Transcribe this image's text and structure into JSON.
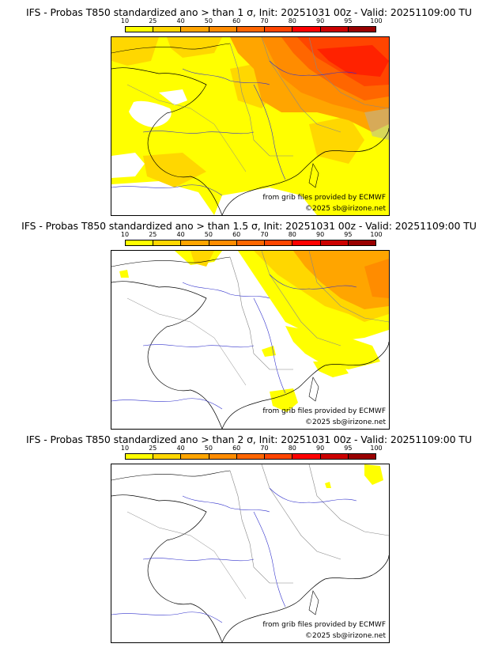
{
  "colorbar": {
    "ticks": [
      "10",
      "25",
      "40",
      "50",
      "60",
      "70",
      "80",
      "90",
      "95",
      "100"
    ],
    "colors": [
      "#ffff00",
      "#ffd700",
      "#ffa500",
      "#ff8c00",
      "#ff6600",
      "#ff4500",
      "#ff0000",
      "#cc0000",
      "#990000",
      "#5c0000"
    ]
  },
  "panels": [
    {
      "title": "IFS - Probas T850  standardized ano > than 1 σ, Init: 20251031 00z - Valid: 20251109:00 TU",
      "source": "from grib files provided by ECMWF",
      "copyright": "©2025 sb@irizone.net"
    },
    {
      "title": "IFS - Probas T850  standardized ano > than 1.5 σ, Init: 20251031 00z - Valid: 20251109:00 TU",
      "source": "from grib files provided by ECMWF",
      "copyright": "©2025 sb@irizone.net"
    },
    {
      "title": "IFS - Probas T850  standardized ano > than 2 σ, Init: 20251031 00z - Valid: 20251109:00 TU",
      "source": "from grib files provided by ECMWF",
      "copyright": "©2025 sb@irizone.net"
    }
  ]
}
